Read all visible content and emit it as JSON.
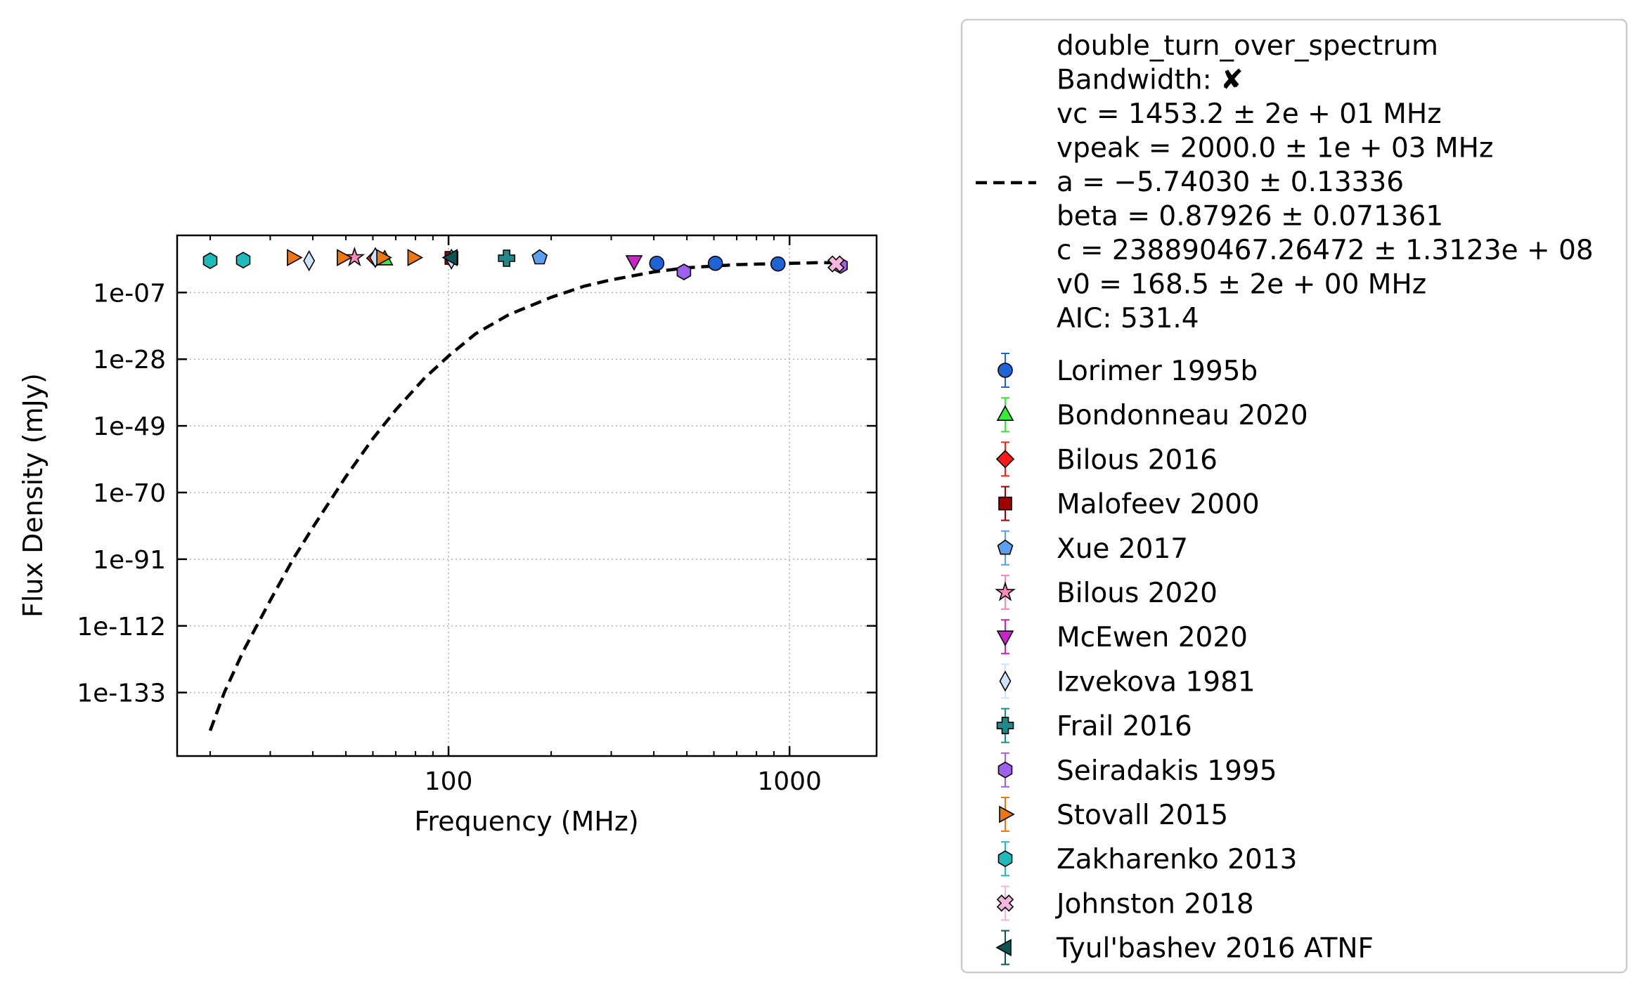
{
  "chart_data": {
    "type": "scatter",
    "xlabel": "Frequency (MHz)",
    "ylabel": "Flux Density (mJy)",
    "x_scale": "log",
    "y_scale": "log",
    "xlim": [
      16,
      1800
    ],
    "ylim_log10": [
      -153,
      11
    ],
    "grid": true,
    "legend_placement": "outside-right",
    "x_ticks": [
      {
        "value": 100,
        "label": "100"
      },
      {
        "value": 1000,
        "label": "1000"
      }
    ],
    "y_ticks": [
      {
        "exp": -7,
        "label": "1e-07"
      },
      {
        "exp": -28,
        "label": "1e-28"
      },
      {
        "exp": -49,
        "label": "1e-49"
      },
      {
        "exp": -70,
        "label": "1e-70"
      },
      {
        "exp": -91,
        "label": "1e-91"
      },
      {
        "exp": -112,
        "label": "1e-112"
      },
      {
        "exp": -133,
        "label": "1e-133"
      }
    ],
    "fit": {
      "legend_lines": [
        "double_turn_over_spectrum",
        "Bandwidth: ✘",
        "vc = 1453.2 ± 2e + 01 MHz",
        "vpeak = 2000.0 ± 1e + 03 MHz",
        "a = −5.74030 ± 0.13336",
        "beta = 0.87926 ± 0.071361",
        "c = 238890467.26472 ± 1.3123e + 08",
        "v0 = 168.5 ± 2e + 00 MHz",
        "AIC: 531.4"
      ],
      "color": "#000000",
      "curve": [
        {
          "x": 20,
          "log10y": -145
        },
        {
          "x": 22,
          "log10y": -133
        },
        {
          "x": 25,
          "log10y": -120
        },
        {
          "x": 30,
          "log10y": -104
        },
        {
          "x": 35,
          "log10y": -91
        },
        {
          "x": 40,
          "log10y": -81
        },
        {
          "x": 50,
          "log10y": -65
        },
        {
          "x": 60,
          "log10y": -53
        },
        {
          "x": 70,
          "log10y": -44
        },
        {
          "x": 85,
          "log10y": -34
        },
        {
          "x": 100,
          "log10y": -27
        },
        {
          "x": 120,
          "log10y": -20
        },
        {
          "x": 150,
          "log10y": -14
        },
        {
          "x": 200,
          "log10y": -8.5
        },
        {
          "x": 250,
          "log10y": -5
        },
        {
          "x": 300,
          "log10y": -3
        },
        {
          "x": 400,
          "log10y": -0.5
        },
        {
          "x": 500,
          "log10y": 0.8
        },
        {
          "x": 700,
          "log10y": 1.8
        },
        {
          "x": 1000,
          "log10y": 2.2
        },
        {
          "x": 1200,
          "log10y": 2.4
        },
        {
          "x": 1453,
          "log10y": 2.4
        }
      ]
    },
    "series": [
      {
        "name": "Lorimer 1995b",
        "marker": "circle",
        "color": "#1f63d8",
        "points": [
          {
            "x": 408,
            "log10y": 2.2
          },
          {
            "x": 606,
            "log10y": 2.2
          },
          {
            "x": 925,
            "log10y": 2.0
          }
        ]
      },
      {
        "name": "Bondonneau 2020",
        "marker": "triangle-up",
        "color": "#33ee33",
        "points": [
          {
            "x": 65,
            "log10y": 3.5
          }
        ]
      },
      {
        "name": "Bilous 2016",
        "marker": "diamond",
        "color": "#ff1a1a",
        "points": [
          {
            "x": 61,
            "log10y": 3.8
          }
        ]
      },
      {
        "name": "Malofeev 2000",
        "marker": "square",
        "color": "#a00000",
        "points": [
          {
            "x": 102,
            "log10y": 3.9
          }
        ]
      },
      {
        "name": "Xue 2017",
        "marker": "pentagon",
        "color": "#5aa0f0",
        "points": [
          {
            "x": 185,
            "log10y": 4.0
          }
        ]
      },
      {
        "name": "Bilous 2020",
        "marker": "star",
        "color": "#ff88bb",
        "points": [
          {
            "x": 53,
            "log10y": 4.0
          }
        ]
      },
      {
        "name": "McEwen 2020",
        "marker": "triangle-down",
        "color": "#cc22cc",
        "points": [
          {
            "x": 350,
            "log10y": 2.8
          }
        ]
      },
      {
        "name": "Izvekova 1981",
        "marker": "thin-diamond",
        "color": "#cce4ff",
        "points": [
          {
            "x": 39,
            "log10y": 3.0
          },
          {
            "x": 61,
            "log10y": 4.0
          },
          {
            "x": 102,
            "log10y": 3.5
          }
        ]
      },
      {
        "name": "Frail 2016",
        "marker": "plus",
        "color": "#1f8a8a",
        "points": [
          {
            "x": 148,
            "log10y": 3.8
          }
        ]
      },
      {
        "name": "Seiradakis 1995",
        "marker": "hexagon",
        "color": "#a060ee",
        "points": [
          {
            "x": 490,
            "log10y": -0.5
          },
          {
            "x": 1410,
            "log10y": 1.5
          }
        ]
      },
      {
        "name": "Stovall 2015",
        "marker": "triangle-right",
        "color": "#ee7711",
        "points": [
          {
            "x": 35,
            "log10y": 4.0
          },
          {
            "x": 49,
            "log10y": 4.0
          },
          {
            "x": 64,
            "log10y": 4.0
          },
          {
            "x": 79,
            "log10y": 4.0
          }
        ]
      },
      {
        "name": "Zakharenko 2013",
        "marker": "hexagon",
        "color": "#1fbbbb",
        "points": [
          {
            "x": 20,
            "log10y": 3.0
          },
          {
            "x": 25,
            "log10y": 3.2
          }
        ]
      },
      {
        "name": "Johnston 2018",
        "marker": "x-filled",
        "color": "#f4b6dc",
        "points": [
          {
            "x": 1369,
            "log10y": 2.0
          }
        ]
      },
      {
        "name": "Tyul'bashev 2016 ATNF",
        "marker": "triangle-left",
        "color": "#0f5252",
        "points": [
          {
            "x": 102,
            "log10y": 4.0
          }
        ]
      }
    ]
  }
}
